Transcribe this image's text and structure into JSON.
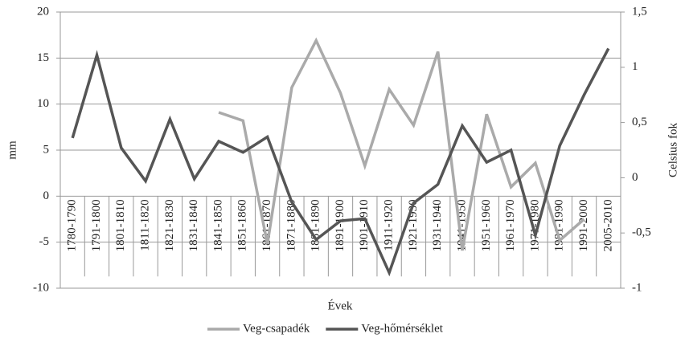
{
  "chart_data": {
    "type": "line",
    "categories": [
      "1780-1790",
      "1791-1800",
      "1801-1810",
      "1811-1820",
      "1821-1830",
      "1831-1840",
      "1841-1850",
      "1851-1860",
      "1861-1870",
      "1871-1880",
      "1881-1890",
      "1891-1900",
      "1901-1910",
      "1911-1920",
      "1921-1930",
      "1931-1940",
      "1941-1950",
      "1951-1960",
      "1961-1970",
      "1971-1980",
      "1981-1990",
      "1991-2000",
      "2005-2010"
    ],
    "series": [
      {
        "name": "Veg-csapadék",
        "color": "#aaaaaa",
        "axis": "y",
        "values": [
          null,
          null,
          null,
          null,
          null,
          null,
          9.1,
          8.2,
          -5.2,
          11.8,
          16.9,
          11.2,
          3.3,
          11.6,
          7.7,
          15.7,
          -5.9,
          8.9,
          1.0,
          3.6,
          -4.8,
          -2.5,
          null
        ]
      },
      {
        "name": "Veg-hőmérséklet",
        "color": "#555555",
        "axis": "y2",
        "values": [
          0.36,
          1.11,
          0.27,
          -0.03,
          0.53,
          -0.01,
          0.33,
          0.23,
          0.37,
          -0.22,
          -0.56,
          -0.39,
          -0.37,
          -0.86,
          -0.23,
          -0.06,
          0.47,
          0.14,
          0.25,
          -0.52,
          0.29,
          0.75,
          1.17
        ]
      }
    ],
    "xlabel": "Évek",
    "ylabel": "mm",
    "y2label": "Celsius fok",
    "ylim": [
      -10,
      20
    ],
    "yticks": [
      -10,
      -5,
      0,
      5,
      10,
      15,
      20
    ],
    "y2lim": [
      -1,
      1.5
    ],
    "y2ticks": [
      -1,
      {
        "value": -0.5,
        "label": "-0,5"
      },
      0,
      {
        "value": 0.5,
        "label": "0,5"
      },
      1,
      {
        "value": 1.5,
        "label": "1,5"
      }
    ],
    "grid": true,
    "legend": "bottom"
  }
}
